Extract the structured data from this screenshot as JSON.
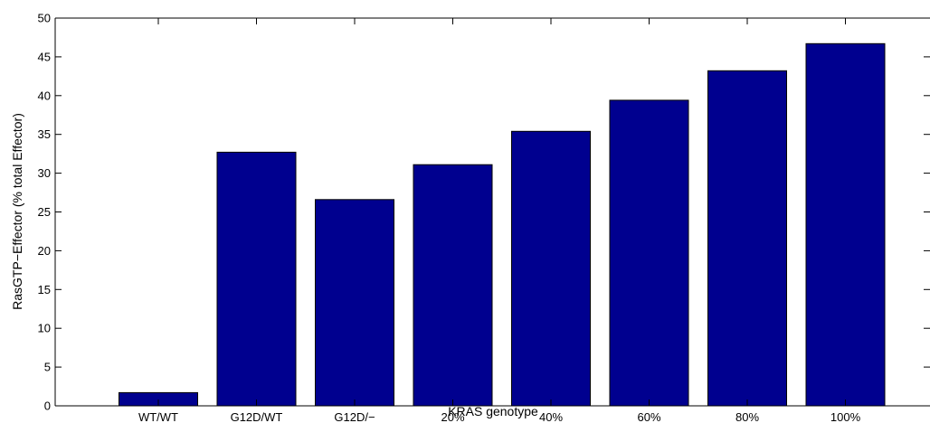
{
  "chart_data": {
    "type": "bar",
    "title": "",
    "xlabel": "KRAS genotype",
    "ylabel": "RasGTP−Effector (% total Effector)",
    "categories": [
      "WT/WT",
      "G12D/WT",
      "G12D/−",
      "20%",
      "40%",
      "60%",
      "80%",
      "100%"
    ],
    "values": [
      1.7,
      32.7,
      26.6,
      31.1,
      35.4,
      39.4,
      43.2,
      46.7
    ],
    "ylim": [
      0,
      50
    ],
    "yticks": [
      0,
      5,
      10,
      15,
      20,
      25,
      30,
      35,
      40,
      45,
      50
    ],
    "bar_color": "#00008f",
    "grid": false,
    "legend": "none"
  }
}
